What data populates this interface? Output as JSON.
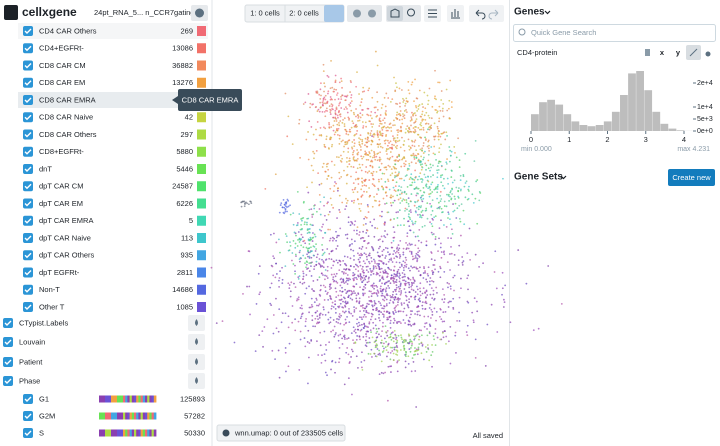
{
  "header": {
    "logo": "cellxgene",
    "dataset": "24pt_RNA_5... n_CCR7gating"
  },
  "toolbar": {
    "crossfilter": [
      "1: 0 cells",
      "2: 0 cells"
    ]
  },
  "categories": {
    "items": [
      {
        "label": "CD4 CAR Others",
        "count": 269,
        "color": "#f06a74"
      },
      {
        "label": "CD4+EGFRt-",
        "count": 13086,
        "color": "#f27268"
      },
      {
        "label": "CD8 CAR CM",
        "count": 36882,
        "color": "#f2895c"
      },
      {
        "label": "CD8 CAR EM",
        "count": 13276,
        "color": "#f2a040"
      },
      {
        "label": "CD8 CAR EMRA"
      },
      {
        "label": "CD8 CAR Naive",
        "count": 42,
        "color": "#c6d440"
      },
      {
        "label": "CD8 CAR Others",
        "count": 297,
        "color": "#aedb44"
      },
      {
        "label": "CD8+EGFRt-",
        "count": 5880,
        "color": "#8ee04a"
      },
      {
        "label": "dnT",
        "count": 5446,
        "color": "#68e254"
      },
      {
        "label": "dpT CAR CM",
        "count": 24587,
        "color": "#4fe26c"
      },
      {
        "label": "dpT CAR EM",
        "count": 6226,
        "color": "#44de90"
      },
      {
        "label": "dpT CAR EMRA",
        "count": 5,
        "color": "#40d8b4"
      },
      {
        "label": "dpT CAR Naive",
        "count": 113,
        "color": "#3ec6cc"
      },
      {
        "label": "dpT CAR Others",
        "count": 935,
        "color": "#42a6e2"
      },
      {
        "label": "dpT EGFRt-",
        "count": 2811,
        "color": "#4a86e8"
      },
      {
        "label": "Non-T",
        "count": 14686,
        "color": "#5468e0"
      },
      {
        "label": "Other T",
        "count": 1085,
        "color": "#6a52d6"
      }
    ],
    "tooltip": "CD8 CAR EMRA",
    "fields": [
      "CTypist.Labels",
      "Louvain",
      "Patient",
      "Phase"
    ],
    "phase": [
      {
        "label": "G1",
        "count": 125893
      },
      {
        "label": "G2M",
        "count": 57282
      },
      {
        "label": "S",
        "count": 50330
      }
    ]
  },
  "footer": {
    "embedding": "wnn.umap: 0 out of 233505 cells",
    "status": "All saved"
  },
  "genes": {
    "title": "Genes",
    "search": "Quick Gene Search",
    "gene": "CD4-protein",
    "x": "x",
    "y": "y",
    "histogram": {
      "bins": [
        0,
        0.2116,
        0.4231,
        0.6347,
        0.8462,
        1.0578,
        1.2693,
        1.4809,
        1.6924,
        1.904,
        2.1155,
        2.3271,
        2.5386,
        2.7502,
        2.9617,
        3.1733,
        3.3848,
        3.5964,
        3.8079,
        4.0195,
        4.231
      ],
      "counts": [
        7000,
        12000,
        13000,
        11000,
        7000,
        4000,
        2500,
        2000,
        2500,
        4000,
        8000,
        15000,
        24000,
        25000,
        17000,
        8000,
        3000,
        1000,
        300,
        50
      ],
      "color": "#bdbdbd",
      "xlim": [
        0,
        4.231
      ],
      "xticks": [
        0,
        1,
        2,
        3,
        4
      ],
      "ylim": [
        0,
        25000
      ],
      "yticks": [
        {
          "value": 20000,
          "label": "2e+4"
        },
        {
          "value": 10000,
          "label": "1e+4"
        },
        {
          "value": 5000,
          "label": "5e+3"
        },
        {
          "value": 0,
          "label": "0e+0"
        }
      ]
    },
    "min": "min 0.000",
    "max": "max 4.231",
    "gene_sets": "Gene Sets",
    "create": "Create new"
  }
}
